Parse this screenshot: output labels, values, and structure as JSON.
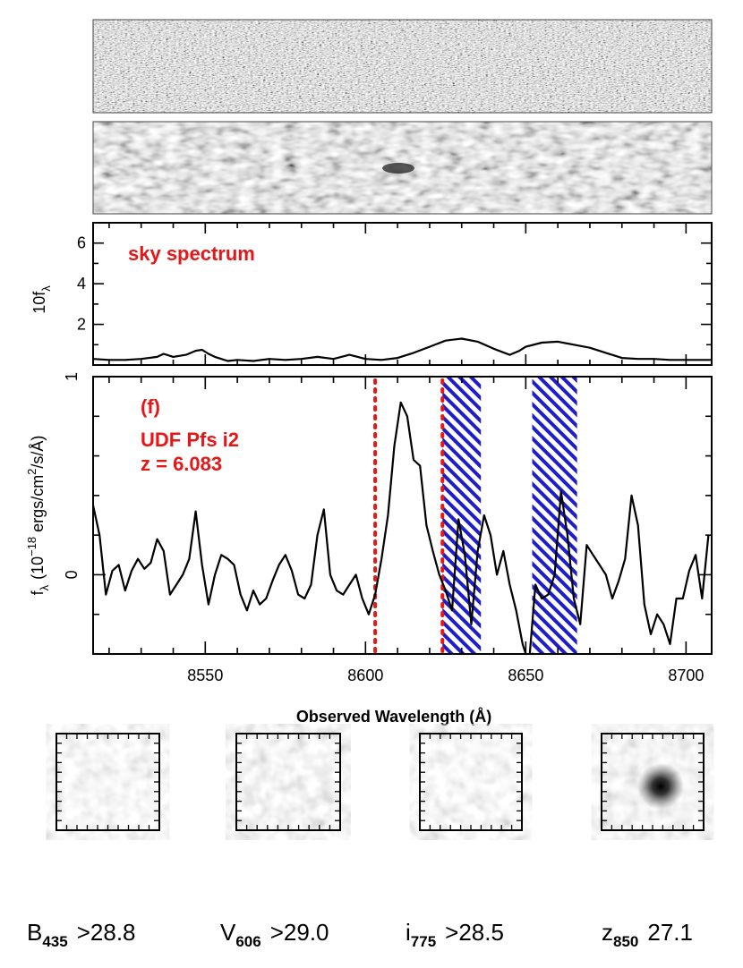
{
  "chart_data": [
    {
      "type": "line",
      "panel": "sky",
      "title": "sky spectrum",
      "ylabel_main": "10f",
      "ylabel_sub": "λ",
      "xlim": [
        8515,
        8708
      ],
      "ylim": [
        0,
        7
      ],
      "yticks": [
        2,
        4,
        6
      ],
      "x": [
        8515,
        8520,
        8525,
        8530,
        8535,
        8537,
        8540,
        8544,
        8547,
        8549,
        8551,
        8553,
        8555,
        8557,
        8560,
        8565,
        8570,
        8575,
        8580,
        8585,
        8590,
        8595,
        8600,
        8605,
        8610,
        8615,
        8620,
        8625,
        8630,
        8635,
        8640,
        8645,
        8648,
        8650,
        8655,
        8660,
        8665,
        8670,
        8675,
        8680,
        8685,
        8690,
        8695,
        8700,
        8705,
        8708
      ],
      "y": [
        0.3,
        0.25,
        0.25,
        0.3,
        0.4,
        0.55,
        0.4,
        0.5,
        0.7,
        0.75,
        0.55,
        0.4,
        0.3,
        0.2,
        0.25,
        0.2,
        0.3,
        0.25,
        0.3,
        0.4,
        0.3,
        0.5,
        0.3,
        0.25,
        0.35,
        0.6,
        0.9,
        1.2,
        1.3,
        1.15,
        0.8,
        0.5,
        0.7,
        0.9,
        1.1,
        1.15,
        1.0,
        0.85,
        0.6,
        0.35,
        0.3,
        0.3,
        0.25,
        0.25,
        0.25,
        0.25
      ]
    },
    {
      "type": "line",
      "panel": "object",
      "label_panel": "(f)",
      "label_name": "UDF Pfs i2",
      "label_z": "z = 6.083",
      "xlabel": "Observed Wavelength (Å)",
      "ylabel": "f",
      "ylabel_sub": "λ",
      "ylabel_unit_pre": "(10",
      "ylabel_unit_exp": "−18",
      "ylabel_unit_mid": " ergs/cm",
      "ylabel_unit_exp2": "2",
      "ylabel_unit_post": "/s/Å)",
      "xlim": [
        8515,
        8708
      ],
      "ylim": [
        -0.4,
        1
      ],
      "xticks": [
        8550,
        8600,
        8650,
        8700
      ],
      "yticks": [
        0,
        1
      ],
      "dotted_lines_x": [
        8603,
        8624
      ],
      "hatched_regions": [
        [
          8624,
          8636
        ],
        [
          8652,
          8666
        ]
      ],
      "x": [
        8515,
        8517,
        8519,
        8521,
        8523,
        8525,
        8527,
        8529,
        8531,
        8533,
        8535,
        8537,
        8539,
        8541,
        8543,
        8545,
        8547,
        8549,
        8551,
        8553,
        8555,
        8557,
        8559,
        8561,
        8563,
        8565,
        8567,
        8569,
        8571,
        8573,
        8575,
        8577,
        8579,
        8581,
        8583,
        8585,
        8587,
        8589,
        8591,
        8593,
        8595,
        8597,
        8599,
        8601,
        8603,
        8605,
        8607,
        8609,
        8611,
        8613,
        8615,
        8617,
        8619,
        8621,
        8623,
        8625,
        8627,
        8629,
        8631,
        8633,
        8635,
        8637,
        8639,
        8641,
        8643,
        8645,
        8647,
        8649,
        8651,
        8653,
        8655,
        8657,
        8659,
        8661,
        8663,
        8665,
        8667,
        8669,
        8671,
        8673,
        8675,
        8677,
        8679,
        8681,
        8683,
        8685,
        8687,
        8689,
        8691,
        8693,
        8695,
        8697,
        8699,
        8701,
        8703,
        8705,
        8707
      ],
      "y": [
        0.35,
        0.2,
        -0.1,
        0.02,
        0.05,
        -0.08,
        0.02,
        0.08,
        0.03,
        0.06,
        0.18,
        0.12,
        -0.1,
        -0.05,
        0.0,
        0.08,
        0.32,
        0.05,
        -0.15,
        0.0,
        0.1,
        0.08,
        0.05,
        -0.1,
        -0.18,
        -0.08,
        -0.15,
        -0.12,
        -0.03,
        0.05,
        0.1,
        0.02,
        -0.1,
        -0.12,
        -0.05,
        0.2,
        0.33,
        0.0,
        -0.08,
        -0.1,
        -0.05,
        0.0,
        -0.12,
        -0.2,
        -0.1,
        0.08,
        0.3,
        0.65,
        0.87,
        0.8,
        0.58,
        0.55,
        0.25,
        0.12,
        0.0,
        -0.08,
        -0.18,
        0.28,
        0.1,
        -0.25,
        0.12,
        0.3,
        0.2,
        0.0,
        0.12,
        -0.05,
        -0.18,
        -0.35,
        -0.45,
        -0.05,
        -0.12,
        -0.1,
        0.0,
        0.42,
        0.2,
        -0.12,
        -0.25,
        0.15,
        0.1,
        0.05,
        0.0,
        -0.12,
        -0.03,
        0.08,
        0.4,
        0.25,
        -0.15,
        -0.3,
        -0.2,
        -0.25,
        -0.35,
        -0.12,
        -0.12,
        0.02,
        0.1,
        -0.12,
        0.2
      ]
    }
  ],
  "xtick_labels": [
    "8550",
    "8600",
    "8650",
    "8700"
  ],
  "sky_ytick_labels": [
    "2",
    "4",
    "6"
  ],
  "obj_ytick_labels": [
    "0",
    "1"
  ],
  "stamps": [
    {
      "band": "B",
      "sub": "435",
      "mag": ">28.8"
    },
    {
      "band": "V",
      "sub": "606",
      "mag": ">29.0"
    },
    {
      "band": "i",
      "sub": "775",
      "mag": ">28.5"
    },
    {
      "band": "z",
      "sub": "850",
      "mag": "27.1"
    }
  ],
  "colors": {
    "label_red": "#e61717",
    "hatch_blue": "#1d1dcc",
    "line": "#000000"
  }
}
